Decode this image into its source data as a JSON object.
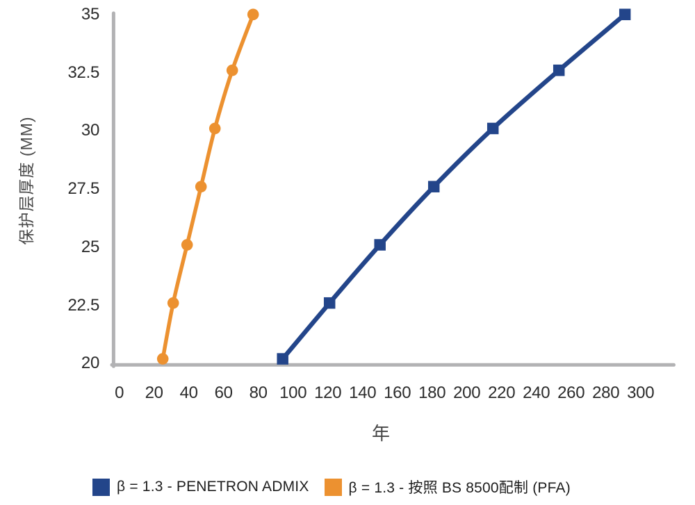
{
  "chart_data": {
    "type": "line",
    "title": "",
    "xlabel": "年",
    "ylabel": "保护层厚度 (MM)",
    "x_ticks": [
      0,
      20,
      40,
      60,
      80,
      100,
      120,
      140,
      160,
      180,
      200,
      220,
      240,
      260,
      280,
      300
    ],
    "y_ticks": [
      20,
      22.5,
      25,
      27.5,
      30,
      32.5,
      35
    ],
    "xlim": [
      0,
      320
    ],
    "ylim": [
      19.9,
      35.1
    ],
    "grid": false,
    "legend_position": "bottom-center",
    "axis_color": "#b2b2b4",
    "tick_label_color": "#2b2b2b",
    "axis_title_color": "#4a4a4a",
    "series": [
      {
        "name": "β = 1.3 - PENETRON ADMIX",
        "color": "#23458a",
        "marker": "square",
        "points": [
          [
            94,
            20.2
          ],
          [
            121,
            22.6
          ],
          [
            150,
            25.1
          ],
          [
            181,
            27.6
          ],
          [
            215,
            30.1
          ],
          [
            253,
            32.6
          ],
          [
            291,
            35
          ]
        ]
      },
      {
        "name": "β = 1.3 - 按照 BS 8500配制 (PFA)",
        "color": "#ec9130",
        "marker": "circle",
        "points": [
          [
            25,
            20.2
          ],
          [
            31,
            22.6
          ],
          [
            39,
            25.1
          ],
          [
            47,
            27.6
          ],
          [
            55,
            30.1
          ],
          [
            65,
            32.6
          ],
          [
            77,
            35
          ]
        ]
      }
    ]
  }
}
